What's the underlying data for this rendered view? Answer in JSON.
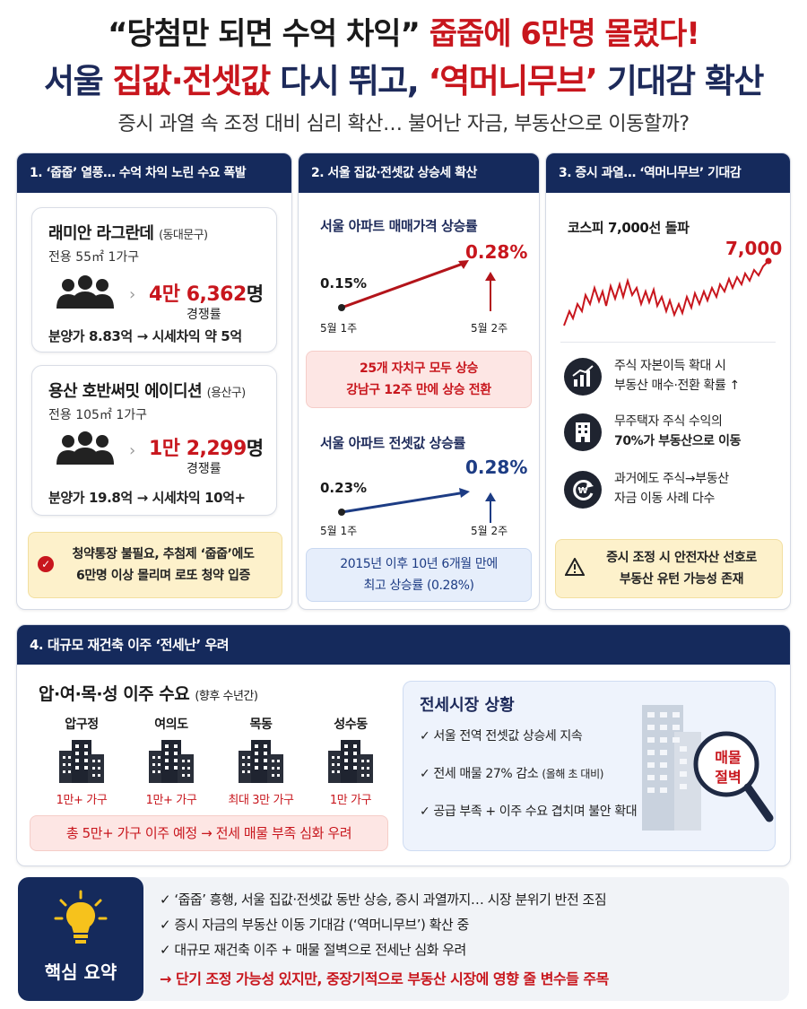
{
  "header": {
    "line1_a": "“당첨만 되면 수억 차익”",
    "line1_b": "줍줍에 6만명 몰렸다!",
    "line2_a": "서울",
    "line2_b": "집값·전셋값",
    "line2_c": "다시 뛰고,",
    "line2_d": "‘역머니무브’",
    "line2_e": "기대감 확산",
    "subtitle": "증시 과열 속 조정 대비 심리 확산… 불어난 자금, 부동산으로 이동할까?"
  },
  "section1": {
    "title": "1. ‘줍줍’ 열풍… 수억 차익 노린 수요 폭발",
    "cards": [
      {
        "name": "래미안 라그란데",
        "district": "(동대문구)",
        "size": "전용 55㎡ 1가구",
        "applicants": "4만 6,362",
        "unit": "명",
        "label": "경쟁률",
        "price": "분양가 8.83억 → 시세차익 약 5억"
      },
      {
        "name": "용산 호반써밋 에이디션",
        "district": "(용산구)",
        "size": "전용 105㎡ 1가구",
        "applicants": "1만 2,299",
        "unit": "명",
        "label": "경쟁률",
        "price": "분양가 19.8억 → 시세차익 10억+"
      }
    ],
    "note_line1": "청약통장 불필요, 추첨제 ‘줍줍’에도",
    "note_line2": "6만명 이상 몰리며 로또 청약 입증"
  },
  "section2": {
    "title": "2. 서울 집값·전셋값 상승세 확산",
    "chart1": {
      "title": "서울 아파트 매매가격 상승률",
      "from_value": "0.15%",
      "to_value": "0.28%",
      "from_label": "5월 1주",
      "to_label": "5월 2주"
    },
    "note1_line1": "25개 자치구 모두 상승",
    "note1_line2": "강남구 12주 만에 상승 전환",
    "chart2": {
      "title": "서울 아파트 전셋값 상승률",
      "from_value": "0.23%",
      "to_value": "0.28%",
      "from_label": "5월 1주",
      "to_label": "5월 2주"
    },
    "note2_line1": "2015년 이후 10년 6개월 만에",
    "note2_line2": "최고 상승률 (0.28%)"
  },
  "section3": {
    "title": "3. 증시 과열… ‘역머니무브’ 기대감",
    "chart_title": "코스피 7,000선 돌파",
    "chart_value": "7,000",
    "bullets": [
      {
        "icon": "stock-chart-icon",
        "line1": "주식 자본이득 확대 시",
        "line2": "부동산 매수·전환 확률 ↑"
      },
      {
        "icon": "building-icon",
        "line1": "무주택자 주식 수익의",
        "line2": "70%가 부동산으로 이동"
      },
      {
        "icon": "cycle-icon",
        "line1": "과거에도 주식→부동산",
        "line2": "자금 이동 사례 다수"
      }
    ],
    "warn_line1": "증시 조정 시 안전자산 선호로",
    "warn_line2": "부동산 유턴 가능성 존재"
  },
  "section4": {
    "title": "4. 대규모 재건축 이주 ‘전세난’ 우려",
    "heading": "압·여·목·성 이주 수요",
    "heading_note": "(향후 수년간)",
    "areas": [
      {
        "name": "압구정",
        "value": "1만+ 가구"
      },
      {
        "name": "여의도",
        "value": "1만+ 가구"
      },
      {
        "name": "목동",
        "value": "최대 3만 가구"
      },
      {
        "name": "성수동",
        "value": "1만 가구"
      }
    ],
    "total_note": "총 5만+ 가구 이주 예정 → 전세 매물 부족 심화 우려",
    "market": {
      "title": "전세시장 상황",
      "items": [
        {
          "text": "서울 전역 전셋값 상승세 지속",
          "note": ""
        },
        {
          "text": "전세 매물 27% 감소",
          "note": "(올해 초 대비)"
        },
        {
          "text": "공급 부족 + 이주 수요 겹치며 불안 확대",
          "note": ""
        }
      ],
      "magnifier_line1": "매물",
      "magnifier_line2": "절벽"
    }
  },
  "summary": {
    "label": "핵심 요약",
    "lines": [
      "✓ ‘줍줍’ 흥행, 서울 집값·전셋값 동반 상승, 증시 과열까지… 시장 분위기 반전 조짐",
      "✓ 증시 자금의 부동산 이동 기대감 (‘역머니무브’) 확산 중",
      "✓ 대규모 재건축 이주 + 매물 절벽으로 전세난 심화 우려"
    ],
    "conclusion": "단기 조정 가능성 있지만, 중장기적으로 부동산 시장에 영향 줄 변수들 주목",
    "conclusion_arrow": "→"
  },
  "colors": {
    "navy": "#152a5c",
    "red": "#c8161d",
    "blue": "#1d3c84"
  }
}
